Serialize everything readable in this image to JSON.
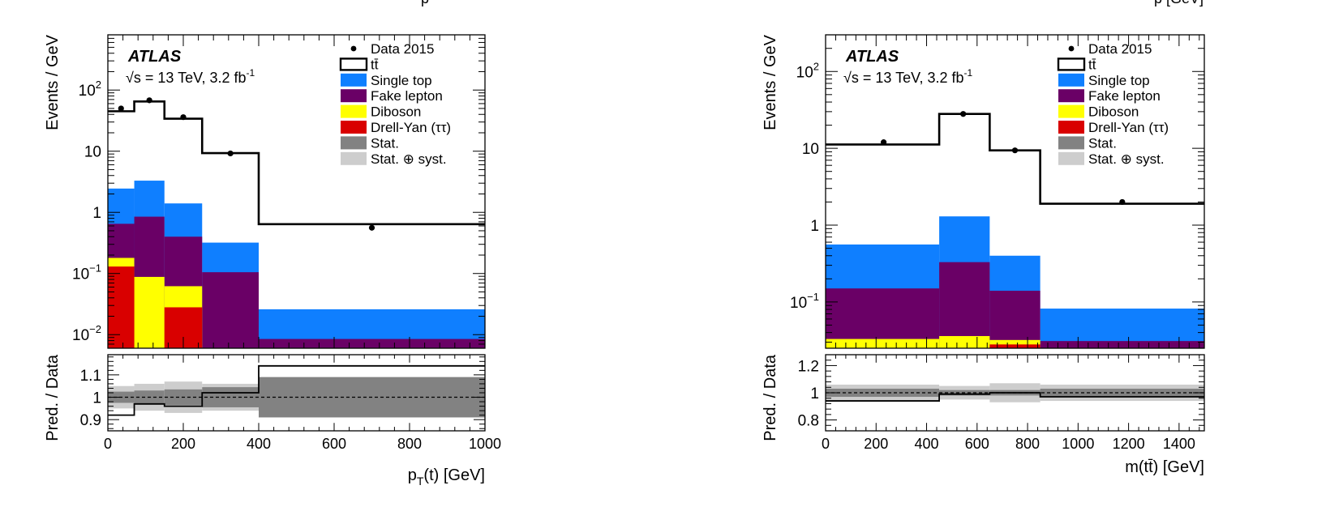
{
  "chart_data": [
    {
      "type": "histogram",
      "ylabel": "Events / GeV",
      "ratio_ylabel": "Pred. / Data",
      "xlabel_parts": {
        "base": "p",
        "sub": "T",
        "rest": "(t) [GeV]"
      },
      "xlim": [
        0,
        1000
      ],
      "ylim": [
        0.006,
        800
      ],
      "yscale": "log",
      "ratio_ylim": [
        0.85,
        1.19
      ],
      "xticks": [
        0,
        200,
        400,
        600,
        800,
        1000
      ],
      "yticks": [
        {
          "value": 100,
          "base": "10",
          "exp": "2"
        },
        {
          "value": 10,
          "base": "10",
          "exp": ""
        },
        {
          "value": 1,
          "base": "1",
          "exp": ""
        },
        {
          "value": 0.1,
          "base": "10",
          "exp": "−1"
        },
        {
          "value": 0.01,
          "base": "10",
          "exp": "−2"
        }
      ],
      "ratio_yticks": [
        {
          "value": 1.1,
          "label": "1.1"
        },
        {
          "value": 1,
          "label": "1"
        },
        {
          "value": 0.9,
          "label": "0.9"
        }
      ],
      "bin_edges": [
        0,
        70,
        150,
        250,
        400,
        1000
      ],
      "stack": {
        "drell_yan": [
          0.13,
          0.006,
          0.028,
          0.006,
          0.006
        ],
        "diboson": [
          0.18,
          0.088,
          0.062,
          0.006,
          0.006
        ],
        "fake_lepton": [
          0.65,
          0.85,
          0.4,
          0.105,
          0.0085
        ],
        "single_top": [
          2.45,
          3.3,
          1.4,
          0.32,
          0.026
        ]
      },
      "ttbar_total": [
        45,
        65,
        34,
        9.3,
        0.64
      ],
      "data_points": {
        "x": [
          35,
          110,
          200,
          325,
          700
        ],
        "y": [
          50,
          68,
          36,
          9.2,
          0.56
        ]
      },
      "ratio": {
        "line": [
          0.92,
          0.97,
          0.96,
          1.02,
          1.14
        ],
        "stat": [
          0.025,
          0.03,
          0.035,
          0.045,
          0.09
        ],
        "syst": [
          0.05,
          0.06,
          0.07,
          0.06,
          0.09
        ]
      }
    },
    {
      "type": "histogram",
      "ylabel": "Events / GeV",
      "ratio_ylabel": "Pred. / Data",
      "xlabel_parts": {
        "base": "m(tt̄) [GeV]",
        "sub": "",
        "rest": ""
      },
      "xlim": [
        0,
        1500
      ],
      "ylim": [
        0.025,
        300
      ],
      "yscale": "log",
      "ratio_ylim": [
        0.72,
        1.28
      ],
      "xticks": [
        0,
        200,
        400,
        600,
        800,
        1000,
        1200,
        1400
      ],
      "yticks": [
        {
          "value": 100,
          "base": "10",
          "exp": "2"
        },
        {
          "value": 10,
          "base": "10",
          "exp": ""
        },
        {
          "value": 1,
          "base": "1",
          "exp": ""
        },
        {
          "value": 0.1,
          "base": "10",
          "exp": "−1"
        }
      ],
      "ratio_yticks": [
        {
          "value": 1.2,
          "label": "1.2"
        },
        {
          "value": 1,
          "label": "1"
        },
        {
          "value": 0.8,
          "label": "0.8"
        }
      ],
      "bin_edges": [
        0,
        450,
        650,
        850,
        1500
      ],
      "stack": {
        "drell_yan": [
          0.025,
          0.025,
          0.028,
          0.025
        ],
        "diboson": [
          0.033,
          0.036,
          0.032,
          0.025
        ],
        "fake_lepton": [
          0.15,
          0.33,
          0.14,
          0.031
        ],
        "single_top": [
          0.56,
          1.3,
          0.4,
          0.082
        ]
      },
      "ttbar_total": [
        11.2,
        28,
        9.4,
        1.9
      ],
      "data_points": {
        "x": [
          230,
          545,
          750,
          1175
        ],
        "y": [
          12,
          28,
          9.4,
          2.0
        ]
      },
      "ratio": {
        "line": [
          0.94,
          0.99,
          1.0,
          0.97
        ],
        "stat": [
          0.03,
          0.02,
          0.02,
          0.03
        ],
        "syst": [
          0.06,
          0.05,
          0.07,
          0.06
        ]
      }
    }
  ],
  "atlas_label": "ATLAS",
  "energy_label": "√s = 13 TeV, 3.2 fb",
  "energy_exp": "-1",
  "legend": [
    {
      "key": "data",
      "label": "Data 2015",
      "style": "marker"
    },
    {
      "key": "ttbar",
      "label": "tt̄",
      "style": "outline"
    },
    {
      "key": "single_top",
      "label": "Single top",
      "style": "fill"
    },
    {
      "key": "fake_lepton",
      "label": "Fake lepton",
      "style": "fill"
    },
    {
      "key": "diboson",
      "label": "Diboson",
      "style": "fill"
    },
    {
      "key": "drell_yan",
      "label": "Drell-Yan (ττ)",
      "style": "fill"
    },
    {
      "key": "stat",
      "label": "Stat.",
      "style": "fill"
    },
    {
      "key": "syst",
      "label": "Stat. ⊕ syst.",
      "style": "fill"
    }
  ],
  "colors": {
    "single_top": "#0f7fff",
    "fake_lepton": "#6a0066",
    "diboson": "#ffff00",
    "drell_yan": "#d90000",
    "stat": "#828282",
    "syst": "#cdcdcd",
    "ttbar": "#000000"
  },
  "cut_labels": {
    "left": "p",
    "right": "p [GeV]"
  }
}
